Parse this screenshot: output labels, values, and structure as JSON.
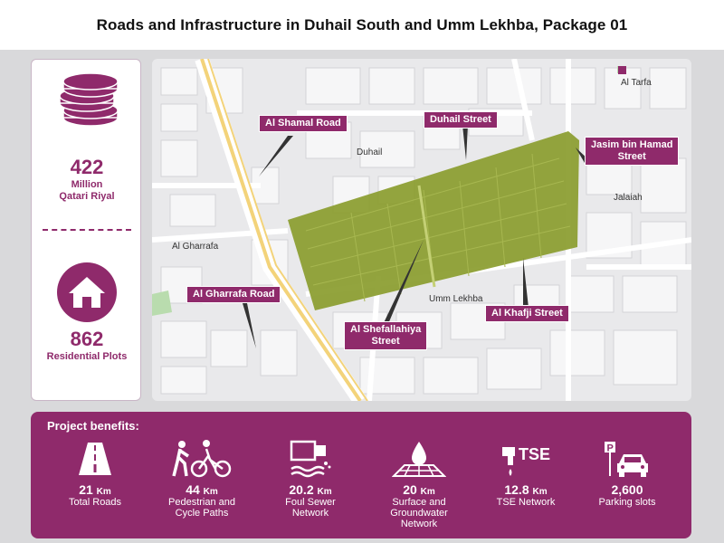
{
  "title": "Roads and Infrastructure in Duhail South and Umm Lekhba, Package 01",
  "stats": {
    "cost_value": "422",
    "cost_unit_1": "Million",
    "cost_unit_2": "Qatari Riyal",
    "plots_value": "862",
    "plots_label": "Residential Plots"
  },
  "map": {
    "road_labels": {
      "al_shamal": "Al Shamal Road",
      "duhail_street": "Duhail Street",
      "jasim_1": "Jasim bin Hamad",
      "jasim_2": "Street",
      "al_gharrafa_road": "Al Gharrafa Road",
      "shefallahiya_1": "Al Shefallahiya",
      "shefallahiya_2": "Street",
      "al_khafji": "Al Khafji Street"
    },
    "areas": {
      "al_tarfa": "Al Tarfa",
      "duhail": "Duhail",
      "jalaiah": "Jalaiah",
      "al_gharrafa": "Al Gharrafa",
      "umm_lekhba": "Umm Lekhba"
    },
    "colors": {
      "project_area": "#8a9c2e",
      "label": "#8f2a6b",
      "highway": "#f3d37a"
    }
  },
  "benefits": {
    "title": "Project benefits:",
    "items": [
      {
        "icon": "road-icon",
        "value": "21",
        "unit": "Km",
        "label_1": "Total Roads",
        "label_2": ""
      },
      {
        "icon": "pedestrian-cycle-icon",
        "value": "44",
        "unit": "Km",
        "label_1": "Pedestrian and",
        "label_2": "Cycle Paths"
      },
      {
        "icon": "sewer-icon",
        "value": "20.2",
        "unit": "Km",
        "label_1": "Foul Sewer",
        "label_2": "Network"
      },
      {
        "icon": "water-drop-icon",
        "value": "20",
        "unit": "Km",
        "label_1": "Surface and",
        "label_2": "Groundwater",
        "label_3": "Network"
      },
      {
        "icon": "tse-tap-icon",
        "icon_text": "TSE",
        "value": "12.8",
        "unit": "Km",
        "label_1": "TSE Network",
        "label_2": ""
      },
      {
        "icon": "parking-car-icon",
        "icon_text": "P",
        "value": "2,600",
        "unit": "",
        "label_1": "Parking slots",
        "label_2": ""
      }
    ]
  }
}
